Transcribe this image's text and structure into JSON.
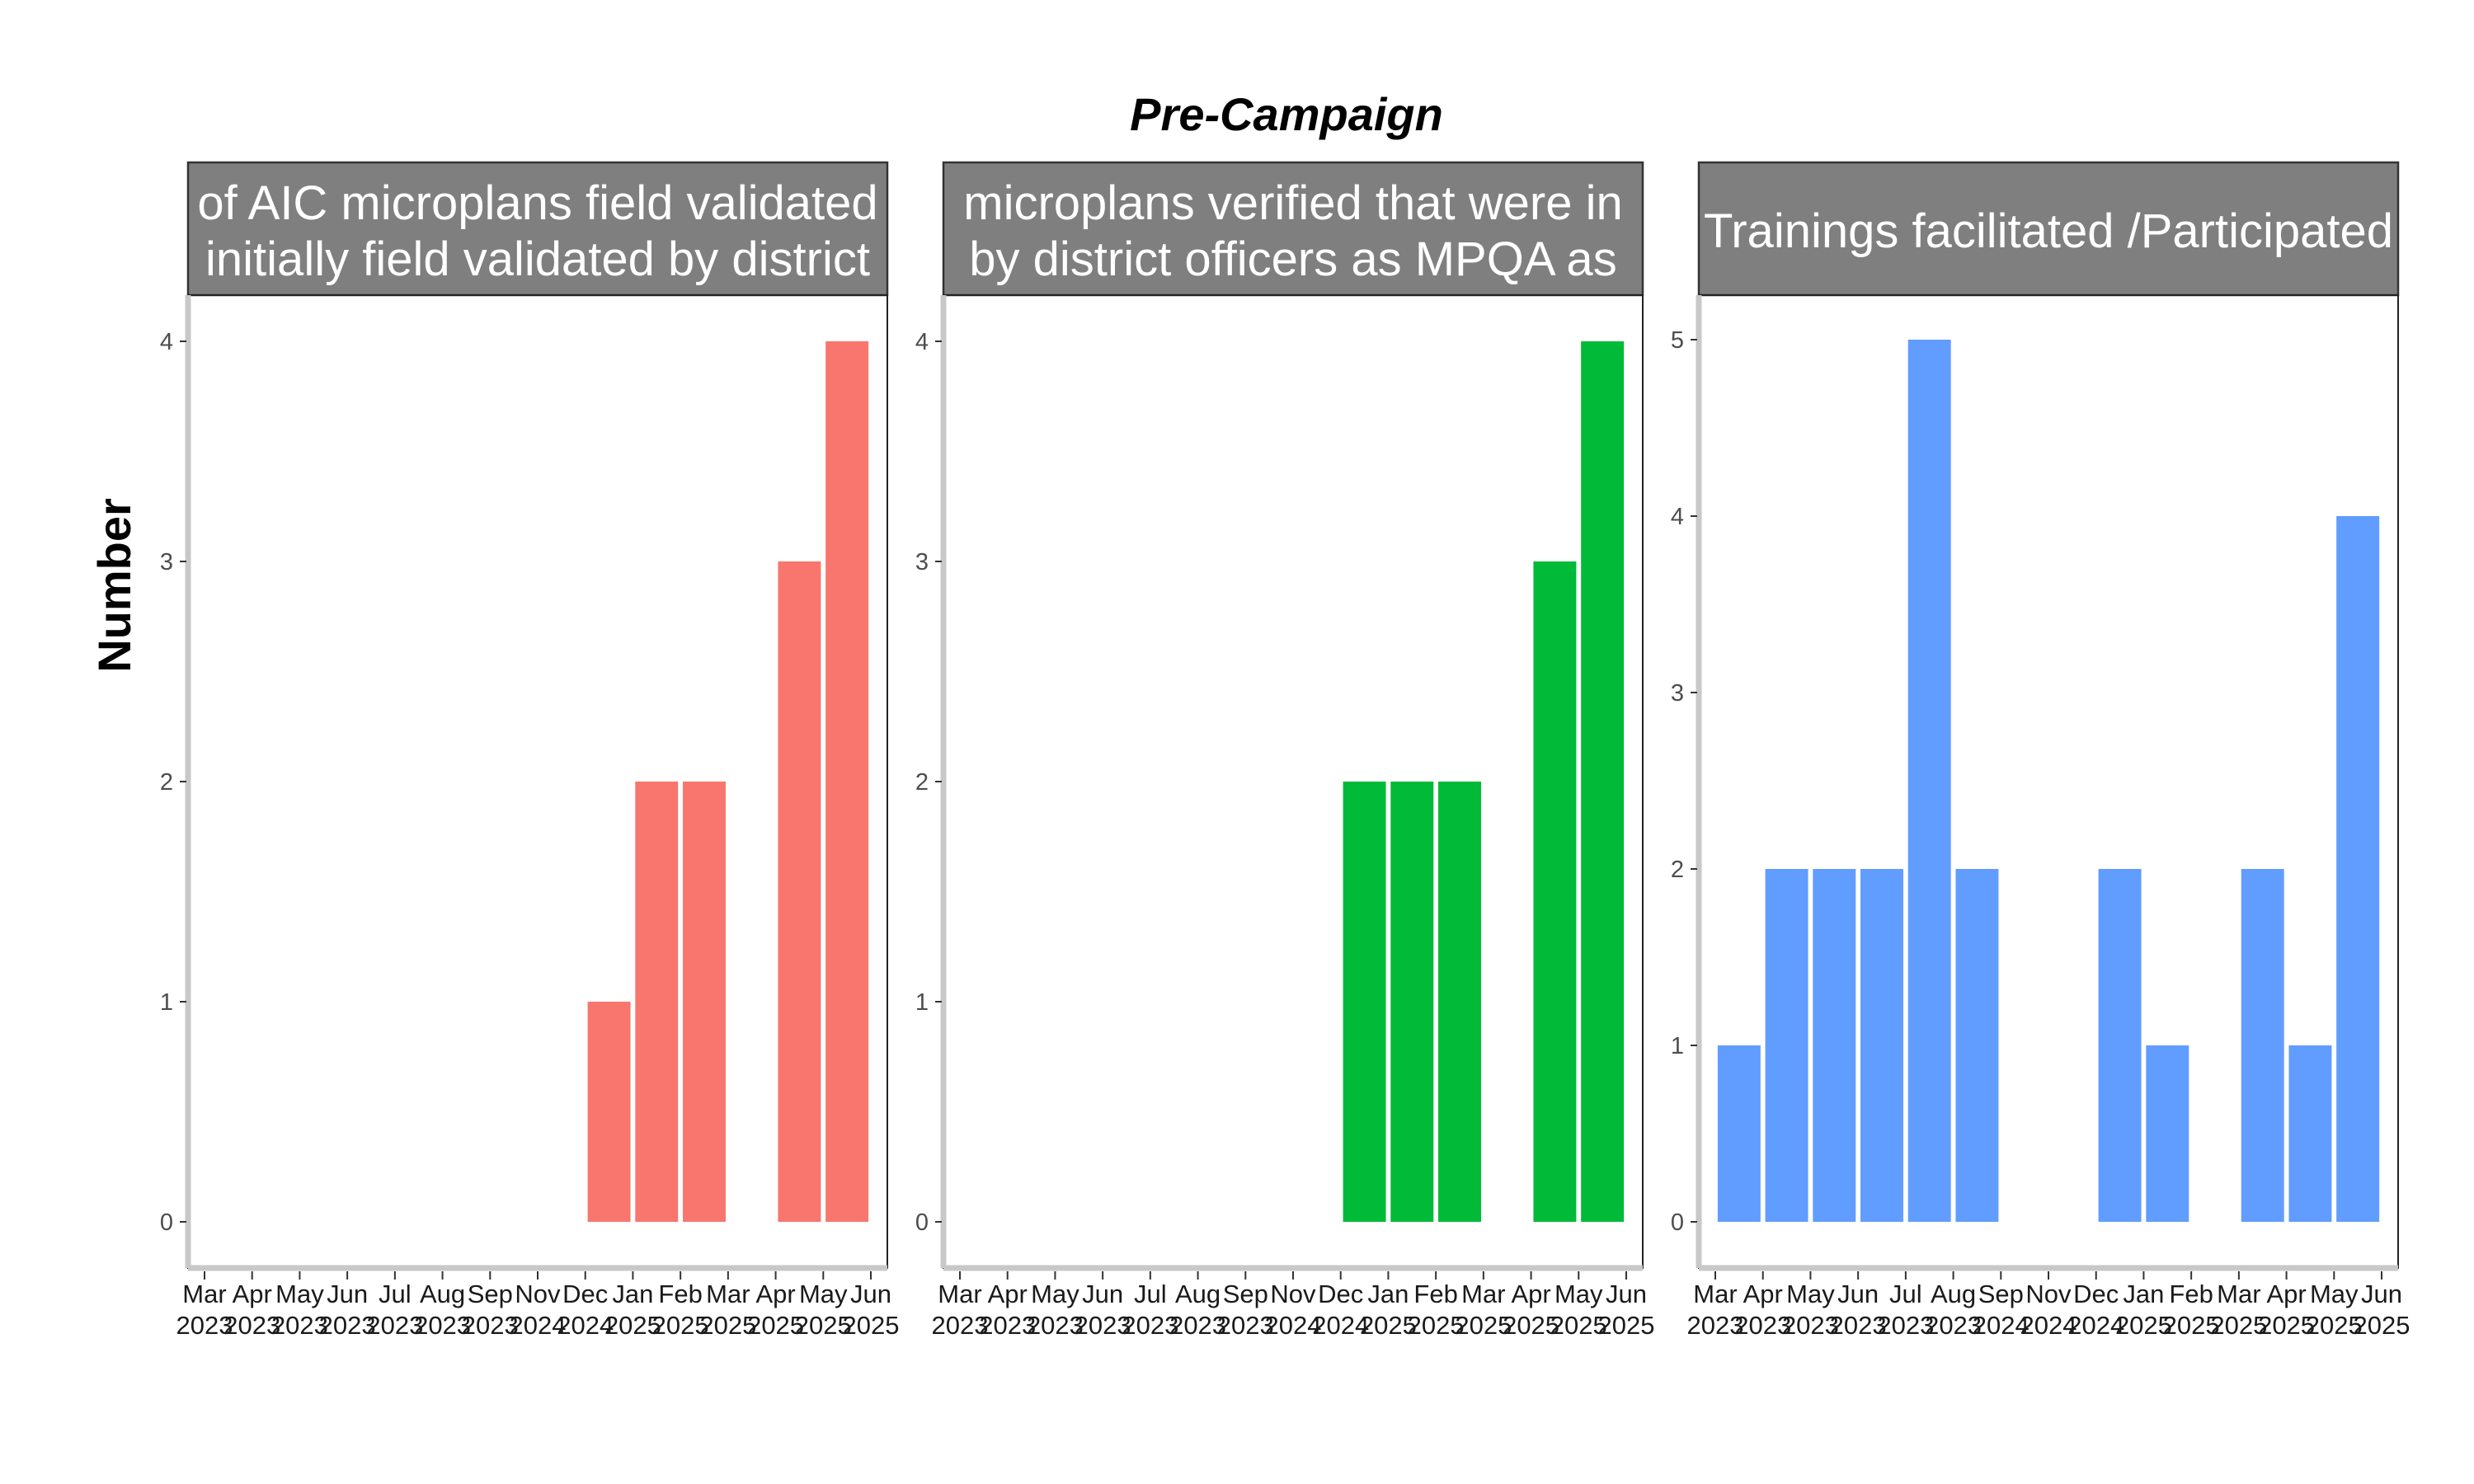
{
  "title": "Pre-Campaign",
  "ylabel": "Number",
  "chart_data": [
    {
      "type": "bar",
      "strip_lines": [
        "of AIC microplans field validated",
        "initially field validated by district"
      ],
      "color": "#F8766D",
      "categories": [
        "Mar 2023",
        "Apr 2023",
        "May 2023",
        "Jun 2023",
        "Jul 2023",
        "Aug 2023",
        "Sep 2023",
        "Nov 2024",
        "Dec 2024",
        "Jan 2025",
        "Feb 2025",
        "Mar 2025",
        "Apr 2025",
        "May 2025",
        "Jun 2025"
      ],
      "tick_labels": [
        [
          "Mar",
          "2023"
        ],
        [
          "Apr",
          "2023"
        ],
        [
          "May",
          "2023"
        ],
        [
          "Jun",
          "2023"
        ],
        [
          "Jul",
          "2023"
        ],
        [
          "Aug",
          "2023"
        ],
        [
          "Sep",
          "2023"
        ],
        [
          "Nov",
          "2024"
        ],
        [
          "Dec",
          "2024"
        ],
        [
          "Jan",
          "2025"
        ],
        [
          "Feb",
          "2025"
        ],
        [
          "Mar",
          "2025"
        ],
        [
          "Apr",
          "2025"
        ],
        [
          "May",
          "2025"
        ],
        [
          "Jun",
          "2025"
        ]
      ],
      "values": [
        null,
        null,
        null,
        null,
        null,
        null,
        null,
        null,
        1,
        2,
        2,
        null,
        3,
        4,
        null
      ],
      "ylim": [
        0,
        4.2
      ],
      "yticks": [
        0,
        1,
        2,
        3,
        4
      ]
    },
    {
      "type": "bar",
      "strip_lines": [
        "microplans verified that were in",
        "by district officers as MPQA as"
      ],
      "color": "#00BA38",
      "categories": [
        "Mar 2023",
        "Apr 2023",
        "May 2023",
        "Jun 2023",
        "Jul 2023",
        "Aug 2023",
        "Sep 2023",
        "Nov 2024",
        "Dec 2024",
        "Jan 2025",
        "Feb 2025",
        "Mar 2025",
        "Apr 2025",
        "May 2025",
        "Jun 2025"
      ],
      "tick_labels": [
        [
          "Mar",
          "2023"
        ],
        [
          "Apr",
          "2023"
        ],
        [
          "May",
          "2023"
        ],
        [
          "Jun",
          "2023"
        ],
        [
          "Jul",
          "2023"
        ],
        [
          "Aug",
          "2023"
        ],
        [
          "Sep",
          "2023"
        ],
        [
          "Nov",
          "2024"
        ],
        [
          "Dec",
          "2024"
        ],
        [
          "Jan",
          "2025"
        ],
        [
          "Feb",
          "2025"
        ],
        [
          "Mar",
          "2025"
        ],
        [
          "Apr",
          "2025"
        ],
        [
          "May",
          "2025"
        ],
        [
          "Jun",
          "2025"
        ]
      ],
      "values": [
        null,
        null,
        null,
        null,
        null,
        null,
        null,
        null,
        2,
        2,
        2,
        null,
        3,
        4,
        null
      ],
      "ylim": [
        0,
        4.2
      ],
      "yticks": [
        0,
        1,
        2,
        3,
        4
      ]
    },
    {
      "type": "bar",
      "strip_lines": [
        "Trainings facilitated /Participated"
      ],
      "color": "#619CFF",
      "categories": [
        "Mar 2023",
        "Apr 2023",
        "May 2023",
        "Jun 2023",
        "Jul 2023",
        "Aug 2023",
        "Sep 2024",
        "Nov 2024",
        "Dec 2024",
        "Jan 2025",
        "Feb 2025",
        "Mar 2025",
        "Apr 2025",
        "May 2025",
        "Jun 2025"
      ],
      "tick_labels": [
        [
          "Mar",
          "2023"
        ],
        [
          "Apr",
          "2023"
        ],
        [
          "May",
          "2023"
        ],
        [
          "Jun",
          "2023"
        ],
        [
          "Jul",
          "2023"
        ],
        [
          "Aug",
          "2023"
        ],
        [
          "Sep",
          "2024"
        ],
        [
          "Nov",
          "2024"
        ],
        [
          "Dec",
          "2024"
        ],
        [
          "Jan",
          "2025"
        ],
        [
          "Feb",
          "2025"
        ],
        [
          "Mar",
          "2025"
        ],
        [
          "Apr",
          "2025"
        ],
        [
          "May",
          "2025"
        ],
        [
          "Jun",
          "2025"
        ]
      ],
      "values": [
        1,
        2,
        2,
        2,
        5,
        2,
        null,
        null,
        2,
        1,
        null,
        2,
        1,
        4,
        null
      ],
      "ylim": [
        0,
        5.25
      ],
      "yticks": [
        0,
        1,
        2,
        3,
        4,
        5
      ]
    }
  ]
}
